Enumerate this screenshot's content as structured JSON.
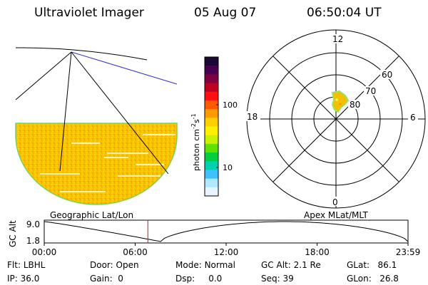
{
  "header": {
    "instrument": "Ultraviolet Imager",
    "date": "05 Aug 07",
    "time": "06:50:04 UT"
  },
  "geo_panel": {
    "label": "Geographic Lat/Lon"
  },
  "colorbar": {
    "unit_label": "photon cm",
    "unit_exp1": "-2",
    "unit_mid": "s",
    "unit_exp2": "-1",
    "ticks": [
      "100",
      "10"
    ],
    "colors": [
      "#1a0a33",
      "#4a0050",
      "#800040",
      "#c00020",
      "#ff1010",
      "#ff5a00",
      "#ff9a00",
      "#ffd000",
      "#fff000",
      "#c8f000",
      "#60e000",
      "#00d040",
      "#00d0b0",
      "#40c0ff",
      "#b0e8ff",
      "#e8f4ff"
    ]
  },
  "polar_panel": {
    "label": "Apex MLat/MLT",
    "mlt_labels": [
      "12",
      "6",
      "0",
      "18"
    ],
    "lat_labels": [
      "60",
      "70",
      "80"
    ]
  },
  "alt_plot": {
    "axis_label": "GC Alt",
    "y_ticks": [
      "9.0",
      "1.8"
    ],
    "x_ticks": [
      "00:00",
      "06:00",
      "12:00",
      "18:00",
      "23:59"
    ],
    "current_time_fraction": 0.285
  },
  "info": {
    "flt_label": "Flt:",
    "flt_value": "LBHL",
    "ip_label": "IP:",
    "ip_value": "36.0",
    "door_label": "Door:",
    "door_value": "Open",
    "gain_label": "Gain:",
    "gain_value": "0",
    "mode_label": "Mode:",
    "mode_value": "Normal",
    "dsp_label": "Dsp:",
    "dsp_value": "0.0",
    "gcalt_label": "GC Alt:",
    "gcalt_value": "2.1 Re",
    "seq_label": "Seq:",
    "seq_value": "39",
    "glat_label": "GLat:",
    "glat_value": "86.1",
    "glon_label": "GLon:",
    "glon_value": "26.8"
  },
  "colors": {
    "accent_line": "#3030d0",
    "time_marker": "#c02020",
    "map_fill": "#f7c000"
  }
}
